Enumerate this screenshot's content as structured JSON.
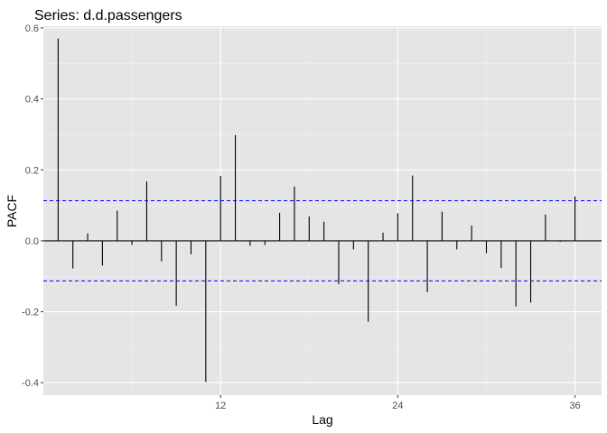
{
  "chart_data": {
    "type": "bar",
    "title": "Series: d.d.passengers",
    "xlabel": "Lag",
    "ylabel": "PACF",
    "xlim": [
      0.0,
      37.8
    ],
    "ylim": [
      -0.435,
      0.605
    ],
    "x_ticks": [
      12,
      24,
      36
    ],
    "x_tick_labels": [
      "12",
      "24",
      "36"
    ],
    "y_ticks": [
      -0.4,
      -0.2,
      0.0,
      0.2,
      0.4,
      0.6
    ],
    "y_tick_labels": [
      "-0.4",
      "-0.2",
      "0.0",
      "0.2",
      "0.4",
      "0.6"
    ],
    "grid": true,
    "confidence_limits": [
      0.113,
      -0.113
    ],
    "series": [
      {
        "lags": [
          1,
          2,
          3,
          4,
          5,
          6,
          7,
          8,
          9,
          10,
          11,
          12,
          13,
          14,
          15,
          16,
          17,
          18,
          19,
          20,
          21,
          22,
          23,
          24,
          25,
          26,
          27,
          28,
          29,
          30,
          31,
          32,
          33,
          34,
          35,
          36
        ],
        "values": [
          0.57,
          -0.078,
          0.021,
          -0.07,
          0.085,
          -0.012,
          0.167,
          -0.058,
          -0.183,
          -0.038,
          -0.398,
          0.183,
          0.298,
          -0.014,
          -0.012,
          0.079,
          0.153,
          0.069,
          0.054,
          -0.122,
          -0.024,
          -0.228,
          0.023,
          0.078,
          0.184,
          -0.145,
          0.082,
          -0.024,
          0.043,
          -0.035,
          -0.077,
          -0.185,
          -0.174,
          0.074,
          -0.003,
          0.125
        ]
      }
    ],
    "colors": {
      "panel_background": "#e5e5e5",
      "grid_major": "#ffffff",
      "bar": "#000000",
      "confidence_line": "#0000ff"
    }
  }
}
